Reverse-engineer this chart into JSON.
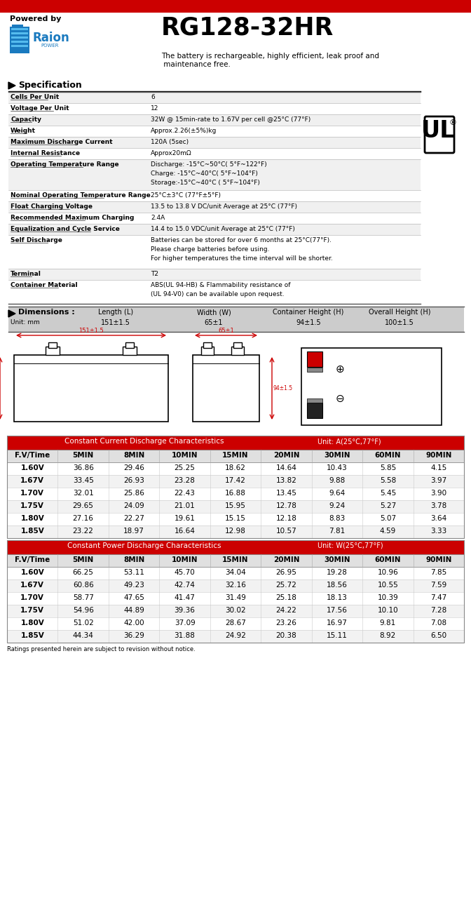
{
  "title": "RG128-32HR",
  "powered_by": "Powered by",
  "description": "The battery is rechargeable, highly efficient, leak proof and\n maintenance free.",
  "red_bar_color": "#CC0000",
  "bg_color": "#FFFFFF",
  "spec_header": "Specification",
  "spec_rows": [
    [
      "Cells Per Unit",
      "6"
    ],
    [
      "Voltage Per Unit",
      "12"
    ],
    [
      "Capacity",
      "32W @ 15min-rate to 1.67V per cell @25°C (77°F)"
    ],
    [
      "Weight",
      "Approx.2.26(±5%)kg"
    ],
    [
      "Maximum Discharge Current",
      "120A (5sec)"
    ],
    [
      "Internal Resistance",
      "Approx20mΩ"
    ],
    [
      "Operating Temperature Range",
      "Discharge: -15°C~50°C( 5°F~122°F)\nCharge: -15°C~40°C( 5°F~104°F)\nStorage:-15°C~40°C ( 5°F~104°F)"
    ],
    [
      "Nominal Operating Temperature Range",
      "25°C±3°C (77°F±5°F)"
    ],
    [
      "Float Charging Voltage",
      "13.5 to 13.8 V DC/unit Average at 25°C (77°F)"
    ],
    [
      "Recommended Maximum Charging",
      "2.4A"
    ],
    [
      "Equalization and Cycle Service",
      "14.4 to 15.0 VDC/unit Average at 25°C (77°F)"
    ],
    [
      "Self Discharge",
      "Batteries can be stored for over 6 months at 25°C(77°F).\nPlease charge batteries before using.\nFor higher temperatures the time interval will be shorter."
    ],
    [
      "Terminal",
      "T2"
    ],
    [
      "Container Material",
      "ABS(UL 94-HB) & Flammability resistance of\n(UL 94-V0) can be available upon request."
    ]
  ],
  "spec_row_heights": [
    16,
    16,
    16,
    16,
    16,
    16,
    44,
    16,
    16,
    16,
    16,
    48,
    16,
    34
  ],
  "dim_header": "Dimensions :",
  "dim_cols": [
    "Length (L)",
    "Width (W)",
    "Container Height (H)",
    "Overall Height (H)"
  ],
  "dim_unit": "Unit: mm",
  "dim_vals": [
    "151±1.5",
    "65±1",
    "94±1.5",
    "100±1.5"
  ],
  "cc_header": "Constant Current Discharge Characteristics",
  "cc_unit": "Unit: A(25°C,77°F)",
  "cp_header": "Constant Power Discharge Characteristics",
  "cp_unit": "Unit: W(25°C,77°F)",
  "table_cols": [
    "F.V/Time",
    "5MIN",
    "8MIN",
    "10MIN",
    "15MIN",
    "20MIN",
    "30MIN",
    "60MIN",
    "90MIN"
  ],
  "cc_data": [
    [
      "1.60V",
      "36.86",
      "29.46",
      "25.25",
      "18.62",
      "14.64",
      "10.43",
      "5.85",
      "4.15"
    ],
    [
      "1.67V",
      "33.45",
      "26.93",
      "23.28",
      "17.42",
      "13.82",
      "9.88",
      "5.58",
      "3.97"
    ],
    [
      "1.70V",
      "32.01",
      "25.86",
      "22.43",
      "16.88",
      "13.45",
      "9.64",
      "5.45",
      "3.90"
    ],
    [
      "1.75V",
      "29.65",
      "24.09",
      "21.01",
      "15.95",
      "12.78",
      "9.24",
      "5.27",
      "3.78"
    ],
    [
      "1.80V",
      "27.16",
      "22.27",
      "19.61",
      "15.15",
      "12.18",
      "8.83",
      "5.07",
      "3.64"
    ],
    [
      "1.85V",
      "23.22",
      "18.97",
      "16.64",
      "12.98",
      "10.57",
      "7.81",
      "4.59",
      "3.33"
    ]
  ],
  "cp_data": [
    [
      "1.60V",
      "66.25",
      "53.11",
      "45.70",
      "34.04",
      "26.95",
      "19.28",
      "10.96",
      "7.85"
    ],
    [
      "1.67V",
      "60.86",
      "49.23",
      "42.74",
      "32.16",
      "25.72",
      "18.56",
      "10.55",
      "7.59"
    ],
    [
      "1.70V",
      "58.77",
      "47.65",
      "41.47",
      "31.49",
      "25.18",
      "18.13",
      "10.39",
      "7.47"
    ],
    [
      "1.75V",
      "54.96",
      "44.89",
      "39.36",
      "30.02",
      "24.22",
      "17.56",
      "10.10",
      "7.28"
    ],
    [
      "1.80V",
      "51.02",
      "42.00",
      "37.09",
      "28.67",
      "23.26",
      "16.97",
      "9.81",
      "7.08"
    ],
    [
      "1.85V",
      "44.34",
      "36.29",
      "31.88",
      "24.92",
      "20.38",
      "15.11",
      "8.92",
      "6.50"
    ]
  ],
  "footer": "Ratings presented herein are subject to revision without notice.",
  "table_header_bg": "#CC0000",
  "table_header_fg": "#FFFFFF",
  "table_col_header_bg": "#E0E0E0",
  "table_row_alt_bg": "#F2F2F2",
  "dim_header_bg": "#CCCCCC"
}
